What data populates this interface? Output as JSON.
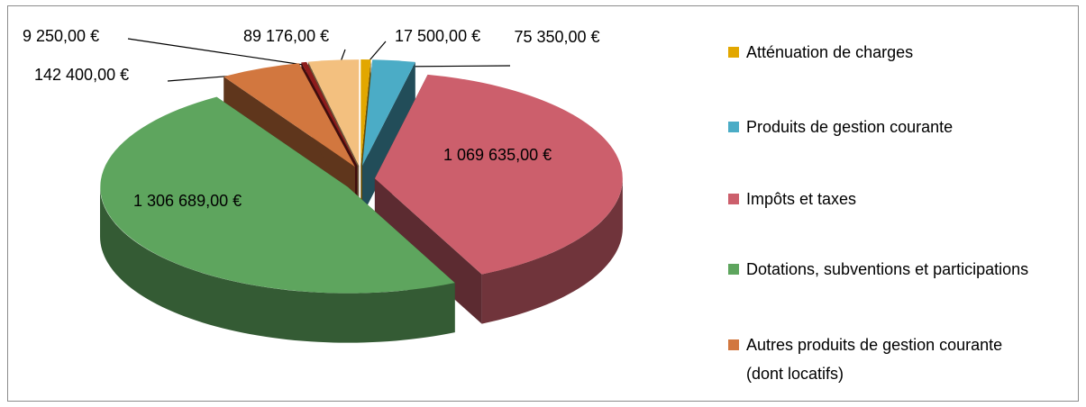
{
  "chart_data": {
    "type": "pie3d",
    "categories": [
      "Atténuation de charges",
      "Produits de gestion courante",
      "Impôts et taxes",
      "Dotations, subventions et participations",
      "Autres produits de gestion courante (dont locatifs)",
      null,
      null
    ],
    "values": [
      17500,
      75350,
      1069635,
      1306689,
      142400,
      9250,
      89176
    ],
    "value_labels": [
      "17 500,00 €",
      "75 350,00 €",
      "1 069 635,00 €",
      "1 306 689,00 €",
      "142 400,00 €",
      "9 250,00 €",
      "89 176,00 €"
    ],
    "colors": [
      "#e2a700",
      "#4bacc6",
      "#cc5f6c",
      "#5ea55e",
      "#d2773f",
      "#8e1c1c",
      "#f3c07f"
    ],
    "legend": "right"
  }
}
